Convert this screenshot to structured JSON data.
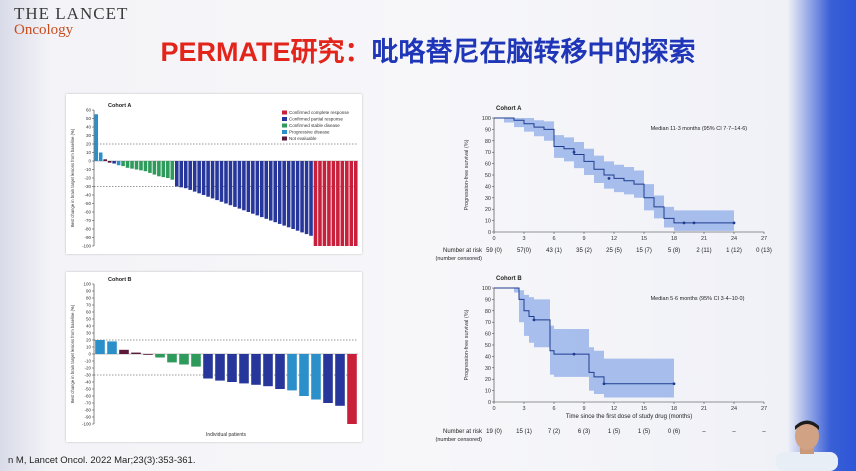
{
  "slide": {
    "brand_line1": "THE LANCET",
    "brand_line2": "Oncology",
    "title_part1": "PERMATE研究：",
    "title_part2": "吡咯替尼在脑转移中的探索",
    "citation": "n M, Lancet Oncol. 2022 Mar;23(3):353-361."
  },
  "colors": {
    "complete_response": "#c8203a",
    "partial_response": "#27369b",
    "stable_disease": "#2e9a5c",
    "progressive_disease": "#2b8fc9",
    "not_evaluable": "#5a1a3a",
    "km_line": "#1f3c8f",
    "km_band": "#7ea2e6"
  },
  "chart_data": [
    {
      "type": "bar",
      "panel": "waterfall-a",
      "title": "Cohort A",
      "ylabel": "Best change in brain target lesions from baseline (%)",
      "ylim": [
        -100,
        60
      ],
      "yticks": [
        60,
        50,
        40,
        30,
        20,
        10,
        0,
        -10,
        -20,
        -30,
        -40,
        -50,
        -60,
        -70,
        -80,
        -90,
        -100
      ],
      "reference_lines": [
        20,
        -30
      ],
      "legend": [
        {
          "key": "complete_response",
          "label": "Confirmed complete response"
        },
        {
          "key": "partial_response",
          "label": "Confirmed partial response"
        },
        {
          "key": "stable_disease",
          "label": "Confirmed stable disease"
        },
        {
          "key": "progressive_disease",
          "label": "Progressive disease"
        },
        {
          "key": "not_evaluable",
          "label": "Not evaluable"
        }
      ],
      "values": [
        55,
        10,
        2,
        -2,
        -3,
        -5,
        -6,
        -8,
        -9,
        -10,
        -11,
        -12,
        -14,
        -16,
        -18,
        -19,
        -20,
        -22,
        -30,
        -31,
        -32,
        -34,
        -36,
        -38,
        -40,
        -42,
        -44,
        -46,
        -48,
        -50,
        -52,
        -54,
        -56,
        -58,
        -60,
        -62,
        -64,
        -66,
        -68,
        -70,
        -72,
        -74,
        -76,
        -78,
        -80,
        -82,
        -84,
        -86,
        -88,
        -100,
        -100,
        -100,
        -100,
        -100,
        -100,
        -100,
        -100,
        -100,
        -100
      ],
      "status": [
        "progressive_disease",
        "progressive_disease",
        "not_evaluable",
        "not_evaluable",
        "partial_response",
        "progressive_disease",
        "stable_disease",
        "stable_disease",
        "stable_disease",
        "stable_disease",
        "stable_disease",
        "stable_disease",
        "stable_disease",
        "stable_disease",
        "stable_disease",
        "stable_disease",
        "stable_disease",
        "stable_disease",
        "partial_response",
        "partial_response",
        "partial_response",
        "partial_response",
        "partial_response",
        "partial_response",
        "partial_response",
        "partial_response",
        "partial_response",
        "partial_response",
        "partial_response",
        "partial_response",
        "partial_response",
        "partial_response",
        "partial_response",
        "partial_response",
        "partial_response",
        "partial_response",
        "partial_response",
        "partial_response",
        "partial_response",
        "partial_response",
        "partial_response",
        "partial_response",
        "partial_response",
        "partial_response",
        "partial_response",
        "partial_response",
        "partial_response",
        "partial_response",
        "partial_response",
        "complete_response",
        "complete_response",
        "complete_response",
        "complete_response",
        "complete_response",
        "complete_response",
        "complete_response",
        "complete_response",
        "complete_response",
        "complete_response"
      ]
    },
    {
      "type": "bar",
      "panel": "waterfall-b",
      "title": "Cohort B",
      "ylabel": "Best change in brain target lesions from baseline (%)",
      "xlabel": "Individual patients",
      "ylim": [
        -100,
        100
      ],
      "yticks": [
        100,
        90,
        80,
        70,
        60,
        50,
        40,
        30,
        20,
        10,
        0,
        -10,
        -20,
        -30,
        -40,
        -50,
        -60,
        -70,
        -80,
        -90,
        -100
      ],
      "reference_lines": [
        20,
        -30
      ],
      "values": [
        20,
        18,
        6,
        2,
        0,
        -5,
        -12,
        -15,
        -18,
        -35,
        -38,
        -40,
        -42,
        -44,
        -46,
        -50,
        -52,
        -60,
        -65,
        -70,
        -74,
        -100
      ],
      "status": [
        "progressive_disease",
        "progressive_disease",
        "not_evaluable",
        "not_evaluable",
        "not_evaluable",
        "stable_disease",
        "stable_disease",
        "stable_disease",
        "stable_disease",
        "partial_response",
        "partial_response",
        "partial_response",
        "partial_response",
        "partial_response",
        "partial_response",
        "partial_response",
        "progressive_disease",
        "progressive_disease",
        "progressive_disease",
        "partial_response",
        "partial_response",
        "complete_response"
      ]
    },
    {
      "type": "line",
      "panel": "km-a",
      "title": "Cohort A",
      "ylabel": "Progression-free survival (%)",
      "annotation": "Median 11·3 months (95% CI 7·7–14·6)",
      "xlim": [
        0,
        27
      ],
      "ylim": [
        0,
        100
      ],
      "xticks": [
        0,
        3,
        6,
        9,
        12,
        15,
        18,
        21,
        24,
        27
      ],
      "yticks": [
        0,
        10,
        20,
        30,
        40,
        50,
        60,
        70,
        80,
        90,
        100
      ],
      "x": [
        0,
        1,
        2,
        3,
        4,
        5,
        6,
        7,
        8,
        9,
        10,
        11,
        12,
        13,
        14,
        15,
        16,
        17,
        18,
        19,
        20,
        21,
        22,
        23,
        24
      ],
      "y": [
        100,
        100,
        98,
        95,
        92,
        90,
        75,
        73,
        68,
        62,
        55,
        50,
        47,
        45,
        42,
        30,
        22,
        12,
        8,
        8,
        8,
        8,
        8,
        8,
        8
      ],
      "lower": [
        100,
        96,
        92,
        88,
        84,
        80,
        65,
        62,
        56,
        50,
        43,
        38,
        35,
        33,
        30,
        19,
        12,
        4,
        1,
        1,
        1,
        1,
        1,
        1,
        1
      ],
      "upper": [
        100,
        100,
        100,
        100,
        98,
        97,
        85,
        83,
        79,
        73,
        67,
        62,
        59,
        57,
        54,
        42,
        32,
        22,
        19,
        19,
        19,
        19,
        19,
        19,
        19
      ],
      "censor_x": [
        8,
        11.5,
        19,
        20,
        24
      ],
      "censor_y": [
        70,
        47,
        8,
        8,
        8
      ],
      "risk_label_1": "Number at risk",
      "risk_label_2": "(number censored)",
      "at_risk": [
        "59 (0)",
        "57(0)",
        "43 (1)",
        "35 (2)",
        "25 (5)",
        "15 (7)",
        "5 (8)",
        "2 (11)",
        "1 (12)",
        "0 (13)"
      ]
    },
    {
      "type": "line",
      "panel": "km-b",
      "title": "Cohort B",
      "ylabel": "Progression-free survival (%)",
      "xlabel": "Time since the first dose of study drug (months)",
      "annotation": "Median 5·6 months (95% CI 3·4–10·0)",
      "xlim": [
        0,
        27
      ],
      "ylim": [
        0,
        100
      ],
      "xticks": [
        0,
        3,
        6,
        9,
        12,
        15,
        18,
        21,
        24,
        27
      ],
      "yticks": [
        0,
        10,
        20,
        30,
        40,
        50,
        60,
        70,
        80,
        90,
        100
      ],
      "x": [
        0,
        1,
        2,
        2.5,
        3,
        3.5,
        4,
        5,
        5.6,
        6,
        7,
        8,
        9,
        9.5,
        10,
        11,
        12,
        13,
        14,
        15,
        16,
        17,
        18
      ],
      "y": [
        100,
        100,
        100,
        90,
        80,
        75,
        72,
        72,
        45,
        42,
        42,
        42,
        42,
        26,
        22,
        16,
        16,
        16,
        16,
        16,
        16,
        16,
        16
      ],
      "lower": [
        100,
        100,
        96,
        70,
        58,
        52,
        48,
        48,
        24,
        22,
        22,
        22,
        22,
        10,
        7,
        4,
        4,
        4,
        4,
        4,
        4,
        4,
        4
      ],
      "upper": [
        100,
        100,
        100,
        98,
        94,
        92,
        90,
        90,
        67,
        64,
        64,
        64,
        64,
        48,
        45,
        38,
        38,
        38,
        38,
        38,
        38,
        38,
        38
      ],
      "censor_x": [
        4,
        8,
        11,
        18
      ],
      "censor_y": [
        72,
        42,
        16,
        16
      ],
      "risk_label_1": "Number at risk",
      "risk_label_2": "(number censored)",
      "at_risk": [
        "19 (0)",
        "15 (1)",
        "7 (2)",
        "6 (3)",
        "1 (5)",
        "1 (5)",
        "0 (6)",
        "–",
        "–",
        "–"
      ]
    }
  ]
}
